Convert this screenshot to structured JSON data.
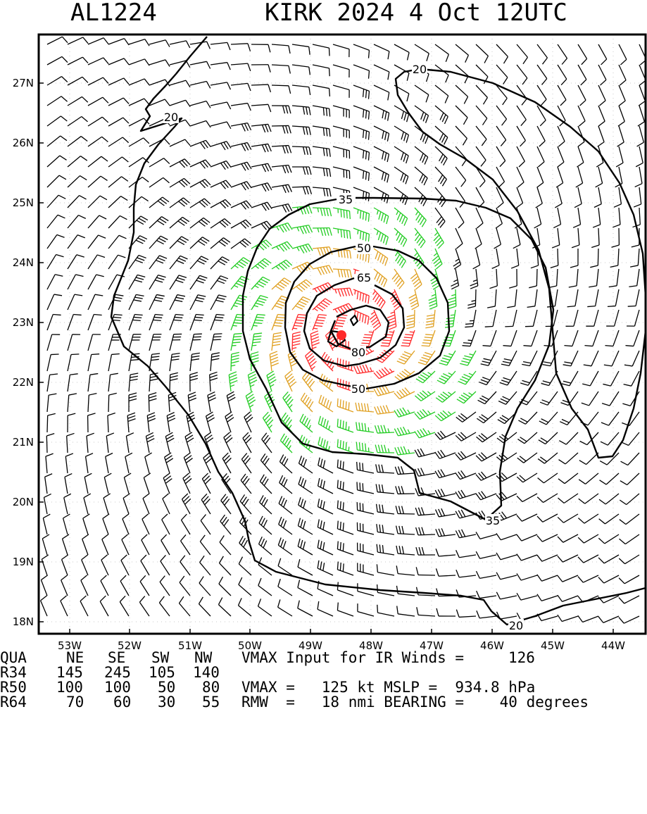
{
  "header": {
    "storm_id": "AL1224",
    "title": "KIRK 2024  4 Oct 12UTC"
  },
  "map": {
    "lon_labels": [
      "53W",
      "52W",
      "51W",
      "50W",
      "49W",
      "48W",
      "47W",
      "46W",
      "45W",
      "44W"
    ],
    "lat_labels": [
      "27N",
      "26N",
      "25N",
      "24N",
      "23N",
      "22N",
      "21N",
      "20N",
      "19N",
      "18N"
    ],
    "contour_labels": [
      "20",
      "20",
      "20",
      "35",
      "35",
      "50",
      "50",
      "65",
      "80"
    ],
    "barb_colors": {
      "below34": "#000000",
      "34_49": "#22cc22",
      "50_63": "#e0a020",
      "64_79": "#ff6a2a",
      "80plus": "#ff2a2a",
      "center": "#ff2a2a"
    }
  },
  "info": {
    "col_header": [
      "QUA",
      "NE",
      "SE",
      "SW",
      "NW"
    ],
    "r34": [
      "R34",
      "145",
      "245",
      "105",
      "140"
    ],
    "r50": [
      "R50",
      "100",
      "100",
      "50",
      "80"
    ],
    "r64": [
      "R64",
      "70",
      "60",
      "30",
      "55"
    ],
    "vmax_input_label": "VMAX Input for IR Winds =",
    "vmax_input_value": "126",
    "vmax_line": "VMAX =   125 kt MSLP =  934.8 hPa",
    "rmw_line": "RMW  =   18 nmi BEARING =    40 degrees"
  }
}
